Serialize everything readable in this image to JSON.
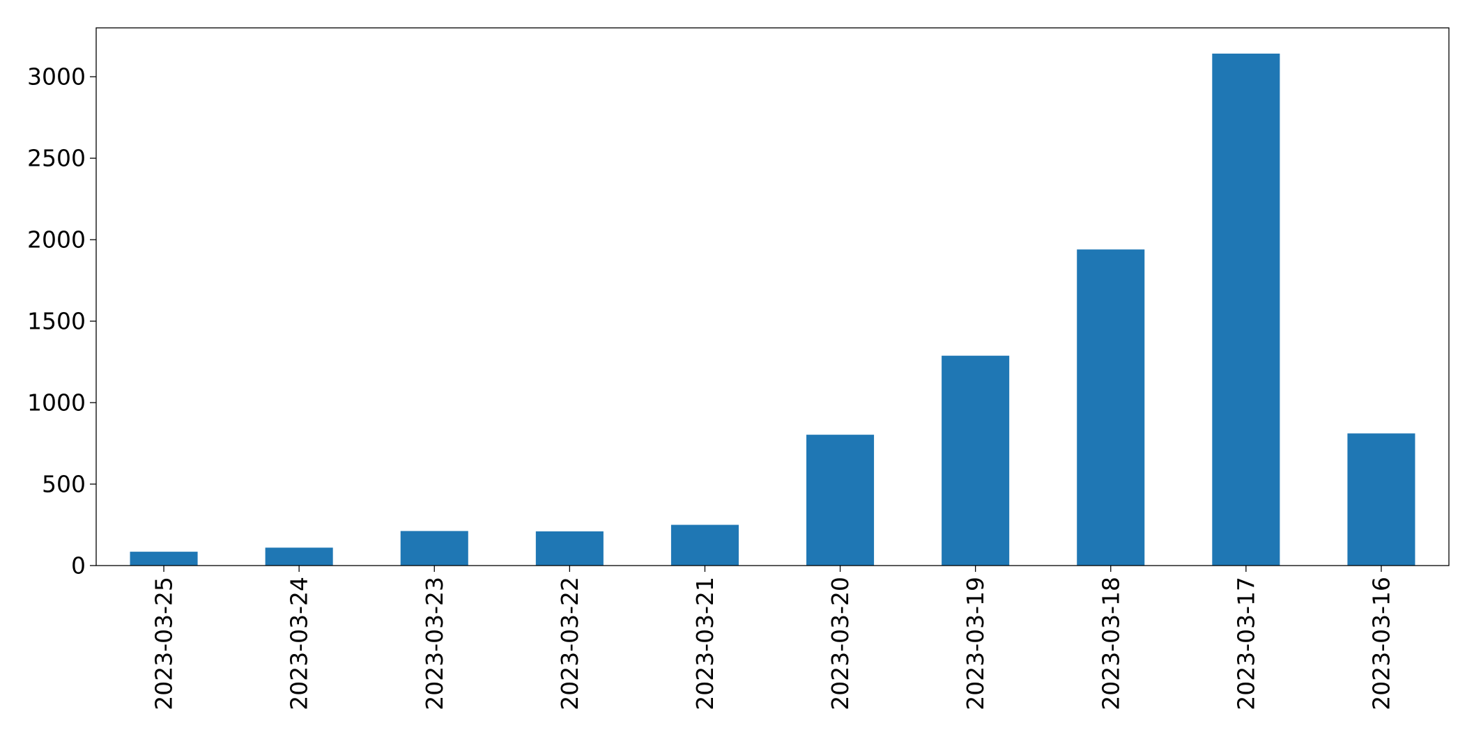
{
  "chart_data": {
    "type": "bar",
    "categories": [
      "2023-03-25",
      "2023-03-24",
      "2023-03-23",
      "2023-03-22",
      "2023-03-21",
      "2023-03-20",
      "2023-03-19",
      "2023-03-18",
      "2023-03-17",
      "2023-03-16"
    ],
    "values": [
      85,
      110,
      212,
      210,
      250,
      803,
      1288,
      1940,
      3142,
      811
    ],
    "title": "",
    "xlabel": "",
    "ylabel": "",
    "ylim": [
      0,
      3300
    ],
    "yticks": [
      0,
      500,
      1000,
      1500,
      2000,
      2500,
      3000
    ],
    "x_tick_rotation": "vertical",
    "grid": false,
    "legend": "none",
    "bar_color": "#1f77b4"
  }
}
